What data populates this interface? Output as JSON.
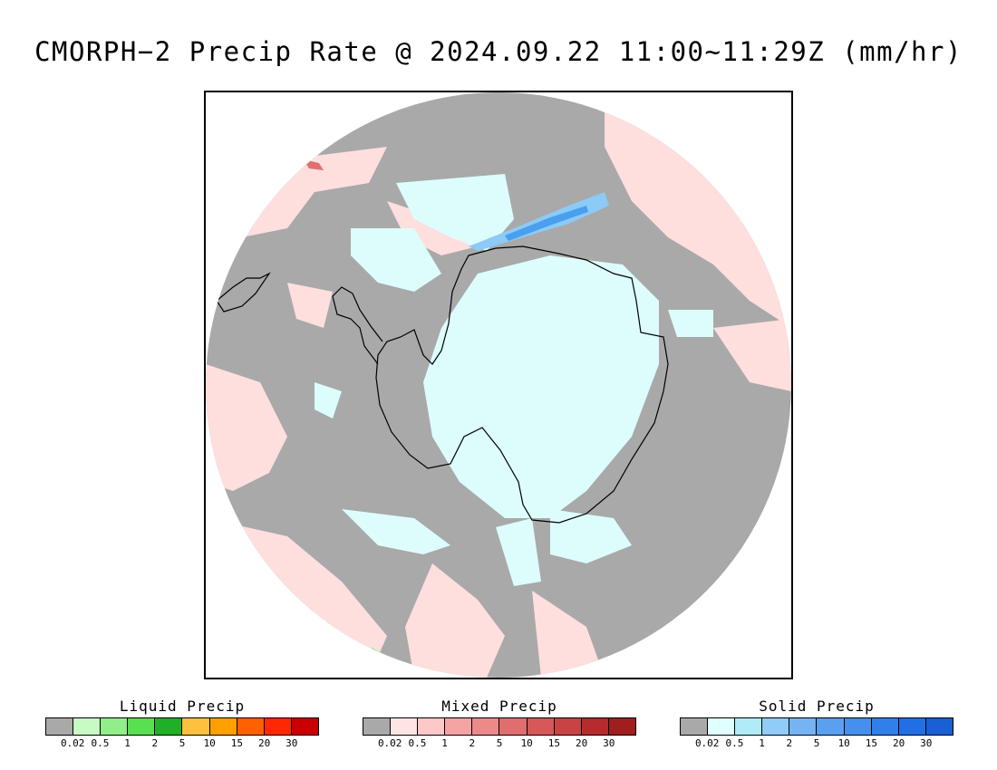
{
  "title": "CMORPH−2 Precip Rate @ 2024.09.22 11:00~11:29Z (mm/hr)",
  "map": {
    "projection": "south-polar-stereographic",
    "colors": {
      "no_precip": "#a9a9a9",
      "mixed_light": "#ffdede",
      "solid_light": "#ddfdfd",
      "solid_mid": "#8ccaf7",
      "solid_strong": "#4aa0ef",
      "liquid_light": "#9cf590",
      "mixed_strong": "#e0706f",
      "coastline": "#000000"
    }
  },
  "legends": [
    {
      "title": "Liquid Precip",
      "colors": [
        "#a9a9a9",
        "#c8fac4",
        "#90ef88",
        "#58e050",
        "#20b028",
        "#ffc040",
        "#ffa000",
        "#ff6000",
        "#ff2800",
        "#c80000"
      ],
      "ticks": [
        "0.02",
        "0.5",
        "1",
        "2",
        "5",
        "10",
        "15",
        "20",
        "30"
      ]
    },
    {
      "title": "Mixed Precip",
      "colors": [
        "#a9a9a9",
        "#ffe4e4",
        "#fcc8c8",
        "#f4a4a4",
        "#ec8a8a",
        "#e06e6e",
        "#d65858",
        "#c84444",
        "#b42c2c",
        "#a01e1e"
      ],
      "ticks": [
        "0.02",
        "0.5",
        "1",
        "2",
        "5",
        "10",
        "15",
        "20",
        "30"
      ]
    },
    {
      "title": "Solid Precip",
      "colors": [
        "#a9a9a9",
        "#e0ffff",
        "#b0ecf8",
        "#90ccf8",
        "#74b4f4",
        "#5aa0f0",
        "#4490ee",
        "#3080ea",
        "#2070e4",
        "#1860d4"
      ],
      "ticks": [
        "0.02",
        "0.5",
        "1",
        "2",
        "5",
        "10",
        "15",
        "20",
        "30"
      ]
    }
  ]
}
